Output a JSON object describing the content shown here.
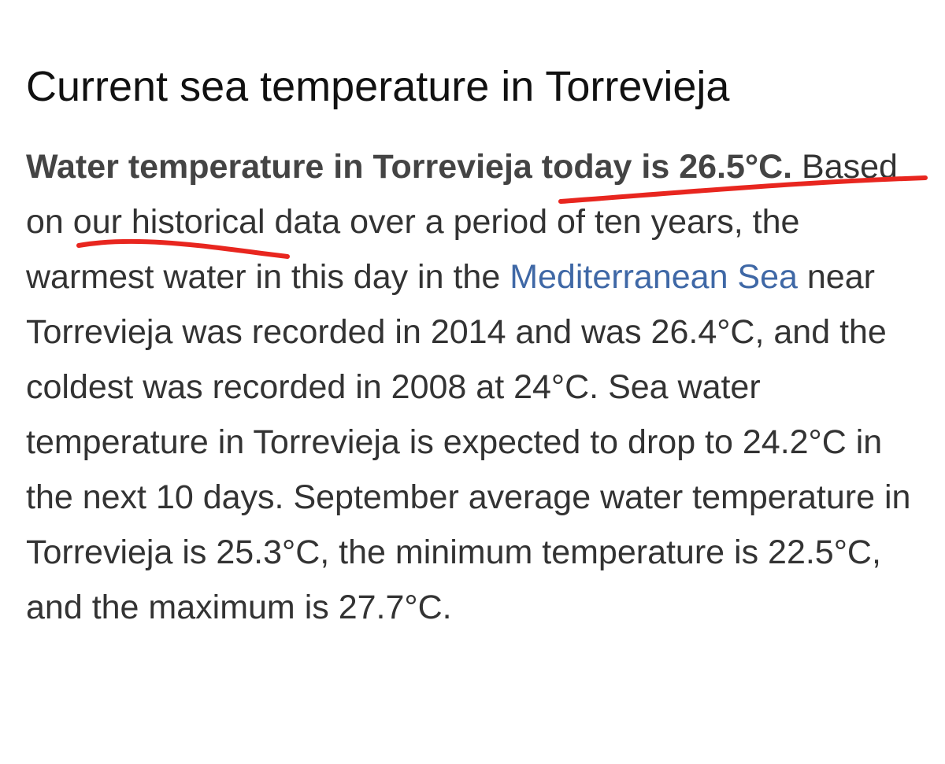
{
  "header": {
    "title": "Current sea temperature in Torrevieja"
  },
  "paragraph": {
    "bold": "Water temperature in Torrevieja today is 26.5°C.",
    "text_1": " Based on our historical data over a period of ten years, the warmest water in this day in the ",
    "link": "Mediterranean Sea",
    "text_2": " near Torrevieja was recorded in 2014 and was 26.4°C, and the coldest was recorded in 2008 at 24°C. Sea water temperature in Torrevieja is expected to drop to 24.2°C in the next 10 days. September average water temperature in Torrevieja is 25.3°C, the minimum temperature is 22.5°C, and the maximum is 27.7°C."
  }
}
